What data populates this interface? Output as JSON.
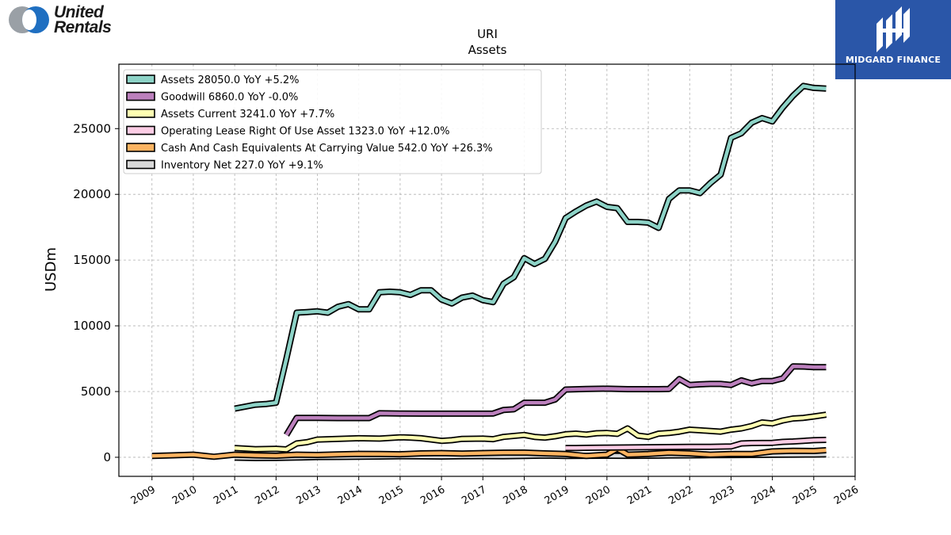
{
  "header": {
    "left_logo_text": "United\nRentals",
    "left_logo_line1": "United",
    "left_logo_line2": "Rentals",
    "right_logo_text": "MIDGARD FINANCE"
  },
  "colors": {
    "brand_blue": "#2a56a8",
    "united_rentals_blue": "#1f6fc1",
    "united_rentals_gray": "#9aa0a6"
  },
  "chart_data": {
    "type": "line",
    "title": "URI",
    "subtitle": "Assets",
    "xlabel": "",
    "ylabel": "USDm",
    "xlim": [
      2008.2,
      2026.0
    ],
    "ylim": [
      -1450,
      29900
    ],
    "x_ticks": [
      "2009",
      "2010",
      "2011",
      "2012",
      "2013",
      "2014",
      "2015",
      "2016",
      "2017",
      "2018",
      "2019",
      "2020",
      "2021",
      "2022",
      "2023",
      "2024",
      "2025",
      "2026"
    ],
    "y_ticks": [
      0,
      5000,
      10000,
      15000,
      20000,
      25000
    ],
    "y_tick_labels": [
      "0",
      "5000",
      "10000",
      "15000",
      "20000",
      "25000"
    ],
    "grid": true,
    "legend_position": "top-left",
    "series": [
      {
        "name": "Assets",
        "legend": "Assets  28050.0 YoY +5.2%",
        "color": "#8dd3c7",
        "x": [
          2011.0,
          2011.25,
          2011.5,
          2011.75,
          2012.0,
          2012.25,
          2012.5,
          2012.75,
          2013.0,
          2013.25,
          2013.5,
          2013.75,
          2014.0,
          2014.25,
          2014.5,
          2014.75,
          2015.0,
          2015.25,
          2015.5,
          2015.75,
          2016.0,
          2016.25,
          2016.5,
          2016.75,
          2017.0,
          2017.25,
          2017.5,
          2017.75,
          2018.0,
          2018.25,
          2018.5,
          2018.75,
          2019.0,
          2019.25,
          2019.5,
          2019.75,
          2020.0,
          2020.25,
          2020.5,
          2020.75,
          2021.0,
          2021.25,
          2021.5,
          2021.75,
          2022.0,
          2022.25,
          2022.5,
          2022.75,
          2023.0,
          2023.25,
          2023.5,
          2023.75,
          2024.0,
          2024.25,
          2024.5,
          2024.75,
          2025.0,
          2025.3
        ],
        "y": [
          3700,
          3850,
          4000,
          4050,
          4150,
          7500,
          11000,
          11050,
          11100,
          11000,
          11450,
          11650,
          11250,
          11250,
          12550,
          12600,
          12550,
          12350,
          12700,
          12700,
          12000,
          11700,
          12150,
          12300,
          11950,
          11800,
          13200,
          13700,
          15150,
          14700,
          15100,
          16400,
          18200,
          18700,
          19150,
          19450,
          19050,
          18950,
          17900,
          17900,
          17850,
          17450,
          19650,
          20300,
          20300,
          20100,
          20850,
          21500,
          24300,
          24650,
          25450,
          25800,
          25550,
          26600,
          27500,
          28250,
          28100,
          28050
        ]
      },
      {
        "name": "Goodwill",
        "legend": "Goodwill  6860.0 YoY -0.0%",
        "color": "#bc80bd",
        "x": [
          2011.0,
          2011.5,
          2012.0,
          2012.25,
          2012.5,
          2012.75,
          2013.0,
          2013.5,
          2014.0,
          2014.25,
          2014.5,
          2015.0,
          2015.5,
          2016.0,
          2016.5,
          2017.0,
          2017.25,
          2017.5,
          2017.75,
          2018.0,
          2018.25,
          2018.5,
          2018.75,
          2019.0,
          2019.5,
          2020.0,
          2020.5,
          2021.0,
          2021.25,
          2021.5,
          2021.75,
          2022.0,
          2022.25,
          2022.5,
          2022.75,
          2023.0,
          2023.25,
          2023.5,
          2023.75,
          2024.0,
          2024.25,
          2024.5,
          2024.75,
          2025.0,
          2025.3
        ],
        "y": [
          null,
          null,
          null,
          1700,
          3000,
          3000,
          3000,
          2980,
          2980,
          2980,
          3350,
          3330,
          3320,
          3320,
          3320,
          3320,
          3330,
          3600,
          3650,
          4150,
          4150,
          4150,
          4400,
          5150,
          5200,
          5220,
          5180,
          5180,
          5180,
          5200,
          5950,
          5500,
          5550,
          5580,
          5580,
          5500,
          5850,
          5620,
          5800,
          5800,
          6000,
          6920,
          6900,
          6860,
          6860
        ]
      },
      {
        "name": "Assets Current",
        "legend": "Assets Current  3241.0 YoY +7.7%",
        "color": "#ffffb3",
        "x": [
          2011.0,
          2011.5,
          2012.0,
          2012.25,
          2012.5,
          2012.75,
          2013.0,
          2013.5,
          2014.0,
          2014.5,
          2015.0,
          2015.25,
          2015.5,
          2016.0,
          2016.25,
          2016.5,
          2017.0,
          2017.25,
          2017.5,
          2018.0,
          2018.25,
          2018.5,
          2018.75,
          2019.0,
          2019.25,
          2019.5,
          2019.75,
          2020.0,
          2020.25,
          2020.5,
          2020.75,
          2021.0,
          2021.25,
          2021.5,
          2021.75,
          2022.0,
          2022.25,
          2022.5,
          2022.75,
          2023.0,
          2023.25,
          2023.5,
          2023.75,
          2024.0,
          2024.25,
          2024.5,
          2024.75,
          2025.0,
          2025.3
        ],
        "y": [
          700,
          620,
          650,
          600,
          1050,
          1150,
          1350,
          1400,
          1450,
          1420,
          1520,
          1500,
          1450,
          1250,
          1300,
          1400,
          1420,
          1380,
          1550,
          1700,
          1550,
          1500,
          1600,
          1750,
          1800,
          1730,
          1830,
          1850,
          1780,
          2200,
          1650,
          1550,
          1800,
          1850,
          1950,
          2100,
          2050,
          2000,
          1950,
          2100,
          2200,
          2380,
          2650,
          2580,
          2800,
          2950,
          3000,
          3100,
          3241
        ]
      },
      {
        "name": "Operating Lease Right Of Use Asset",
        "legend": "Operating Lease Right Of Use Asset  1323.0 YoY +12.0%",
        "color": "#fccde5",
        "x": [
          2019.0,
          2019.25,
          2019.5,
          2020.0,
          2020.5,
          2021.0,
          2021.5,
          2022.0,
          2022.5,
          2023.0,
          2023.25,
          2023.5,
          2024.0,
          2024.25,
          2024.5,
          2024.75,
          2025.0,
          2025.3
        ],
        "y": [
          700,
          700,
          720,
          740,
          750,
          760,
          780,
          800,
          800,
          820,
          1050,
          1080,
          1100,
          1170,
          1200,
          1250,
          1300,
          1323
        ]
      },
      {
        "name": "Cash And Cash Equivalents At Carrying Value",
        "legend": "Cash And Cash Equivalents At Carrying Value  542.0 YoY +26.3%",
        "color": "#fdb462",
        "x": [
          2009.0,
          2009.5,
          2010.0,
          2010.25,
          2010.5,
          2011.0,
          2011.5,
          2012.0,
          2012.5,
          2013.0,
          2013.5,
          2014.0,
          2014.5,
          2015.0,
          2015.5,
          2016.0,
          2016.5,
          2017.0,
          2017.5,
          2018.0,
          2018.5,
          2019.0,
          2019.5,
          2020.0,
          2020.25,
          2020.5,
          2020.75,
          2021.0,
          2021.5,
          2022.0,
          2022.5,
          2023.0,
          2023.5,
          2024.0,
          2024.5,
          2025.0,
          2025.3
        ],
        "y": [
          100,
          150,
          200,
          120,
          40,
          200,
          150,
          120,
          200,
          180,
          220,
          260,
          250,
          230,
          300,
          320,
          280,
          320,
          350,
          360,
          300,
          250,
          100,
          200,
          650,
          200,
          220,
          250,
          350,
          300,
          200,
          250,
          250,
          450,
          500,
          480,
          542
        ]
      },
      {
        "name": "Inventory Net",
        "legend": "Inventory Net  227.0 YoY +9.1%",
        "color": "#d9d9d9",
        "x": [
          2011.0,
          2011.5,
          2012.0,
          2012.5,
          2013.0,
          2013.5,
          2014.0,
          2014.5,
          2015.0,
          2015.5,
          2016.0,
          2016.5,
          2017.0,
          2017.5,
          2018.0,
          2018.5,
          2019.0,
          2019.5,
          2020.0,
          2020.5,
          2021.0,
          2021.5,
          2022.0,
          2022.5,
          2023.0,
          2023.5,
          2024.0,
          2024.5,
          2025.0,
          2025.3
        ],
        "y": [
          -30,
          -60,
          -50,
          -20,
          20,
          30,
          40,
          60,
          80,
          70,
          60,
          80,
          90,
          80,
          100,
          130,
          100,
          110,
          120,
          110,
          120,
          140,
          150,
          160,
          170,
          180,
          190,
          200,
          208,
          227
        ]
      }
    ]
  }
}
